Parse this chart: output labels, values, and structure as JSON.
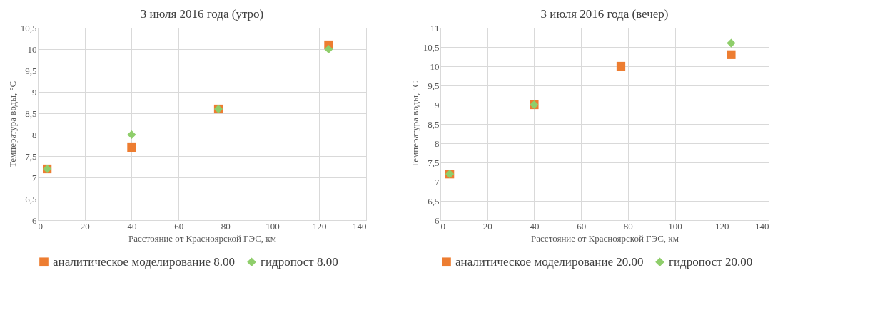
{
  "chart_data": [
    {
      "type": "scatter",
      "title": "3 июля 2016 года (утро)",
      "xlabel": "Расстояние от Красноярской ГЭС, км",
      "ylabel": "Температура воды, °С",
      "x": [
        4,
        40,
        77,
        124
      ],
      "series": [
        {
          "name": "аналитическое моделирование 8.00",
          "color": "#ed7d31",
          "marker": "square",
          "values": [
            7.2,
            7.7,
            8.6,
            10.1
          ]
        },
        {
          "name": "гидропост 8.00",
          "color": "#8fce6b",
          "marker": "diamond",
          "values": [
            7.2,
            8.0,
            8.6,
            10.0
          ]
        }
      ],
      "xlim": [
        0,
        140
      ],
      "xticks": [
        0,
        20,
        40,
        60,
        80,
        100,
        120,
        140
      ],
      "ylim": [
        6,
        10.5
      ],
      "yticks": [
        6,
        {
          "value": 6.5,
          "label": "6,5"
        },
        7,
        {
          "value": 7.5,
          "label": "7,5"
        },
        8,
        {
          "value": 8.5,
          "label": "8,5"
        },
        9,
        {
          "value": 9.5,
          "label": "9,5"
        },
        10,
        {
          "value": 10.5,
          "label": "10,5"
        }
      ],
      "grid": true,
      "legend": "bottom"
    },
    {
      "type": "scatter",
      "title": "3 июля 2016 года (вечер)",
      "xlabel": "Расстояние от Красноярской ГЭС, км",
      "ylabel": "Температура воды, °С",
      "x": [
        4,
        40,
        77,
        124
      ],
      "series": [
        {
          "name": "аналитическое моделирование 20.00",
          "color": "#ed7d31",
          "marker": "square",
          "values": [
            7.2,
            9.0,
            10.0,
            10.3
          ]
        },
        {
          "name": "гидропост 20.00",
          "color": "#8fce6b",
          "marker": "diamond",
          "values": [
            7.2,
            9.0,
            null,
            10.6
          ]
        }
      ],
      "xlim": [
        0,
        140
      ],
      "xticks": [
        0,
        20,
        40,
        60,
        80,
        100,
        120,
        140
      ],
      "ylim": [
        6,
        11
      ],
      "yticks": [
        6,
        {
          "value": 6.5,
          "label": "6,5"
        },
        7,
        {
          "value": 7.5,
          "label": "7,5"
        },
        8,
        {
          "value": 8.5,
          "label": "8,5"
        },
        9,
        {
          "value": 9.5,
          "label": "9,5"
        },
        10,
        {
          "value": 10.5,
          "label": "10,5"
        },
        11
      ],
      "grid": true,
      "legend": "bottom"
    }
  ]
}
